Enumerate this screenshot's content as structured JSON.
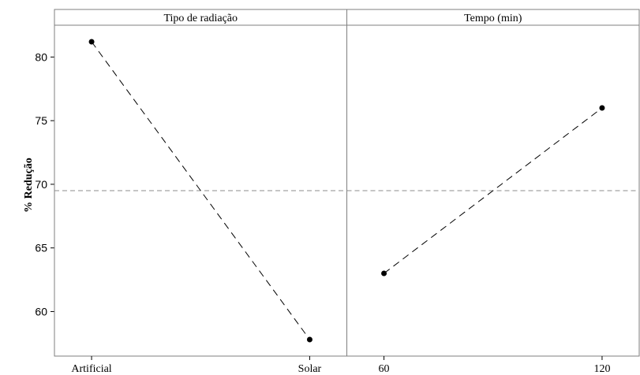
{
  "chart_data": {
    "type": "line",
    "ylabel": "% Redução",
    "ylim": [
      56.5,
      82.5
    ],
    "yticks": [
      60,
      65,
      70,
      75,
      80
    ],
    "grand_mean": 69.5,
    "grid": false,
    "panels": [
      {
        "title": "Tipo de radiação",
        "categories": [
          "Artificial",
          "Solar"
        ],
        "values": [
          81.2,
          57.8
        ]
      },
      {
        "title": "Tempo (min)",
        "categories": [
          "60",
          "120"
        ],
        "values": [
          63.0,
          76.0
        ]
      }
    ]
  }
}
